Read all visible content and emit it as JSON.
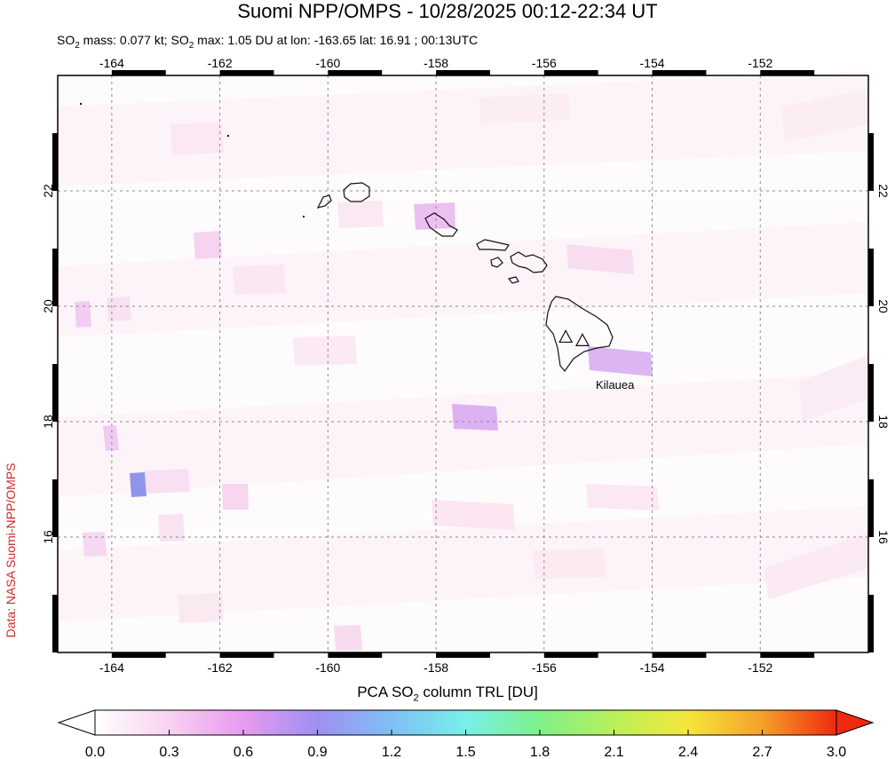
{
  "header": {
    "title": "Suomi NPP/OMPS - 10/28/2025 00:12-22:34 UT",
    "subtitle_prefix": "SO",
    "subtitle_sub1": "2",
    "subtitle_mid": " mass: 0.077 kt; SO",
    "subtitle_sub2": "2",
    "subtitle_suffix": " max: 1.05 DU at lon: -163.65 lat: 16.91 ; 00:13UTC"
  },
  "credit": "Data: NASA Suomi-NPP/OMPS",
  "map": {
    "lon_range": [
      -165,
      -150
    ],
    "lat_range": [
      14,
      24
    ],
    "lon_ticks": [
      -164,
      -162,
      -160,
      -158,
      -156,
      -154,
      -152
    ],
    "lat_ticks": [
      16,
      18,
      20,
      22
    ],
    "lon_labels": [
      "-164",
      "-162",
      "-160",
      "-158",
      "-156",
      "-154",
      "-152"
    ],
    "lat_labels": [
      "16",
      "18",
      "20",
      "22"
    ],
    "volcano_label": "Kilauea",
    "volcanoes": [
      {
        "name": "Mauna Loa",
        "lon": -155.6,
        "lat": 19.47
      },
      {
        "name": "Kilauea",
        "lon": -155.29,
        "lat": 19.41
      }
    ],
    "frame_color": "#000000",
    "grid_color": "#888888"
  },
  "colorbar": {
    "title_prefix": "PCA SO",
    "title_sub": "2",
    "title_suffix": " column TRL [DU]",
    "min": 0.0,
    "max": 3.0,
    "tick_labels": [
      "0.0",
      "0.3",
      "0.6",
      "0.9",
      "1.2",
      "1.5",
      "1.8",
      "2.1",
      "2.4",
      "2.7",
      "3.0"
    ],
    "colors": [
      "#ffffff",
      "#f7d2ef",
      "#e89af0",
      "#9f8ff2",
      "#7fbff5",
      "#78f0e8",
      "#7ff08a",
      "#b9f05a",
      "#f5e63c",
      "#f5a02a",
      "#f02a10"
    ]
  }
}
